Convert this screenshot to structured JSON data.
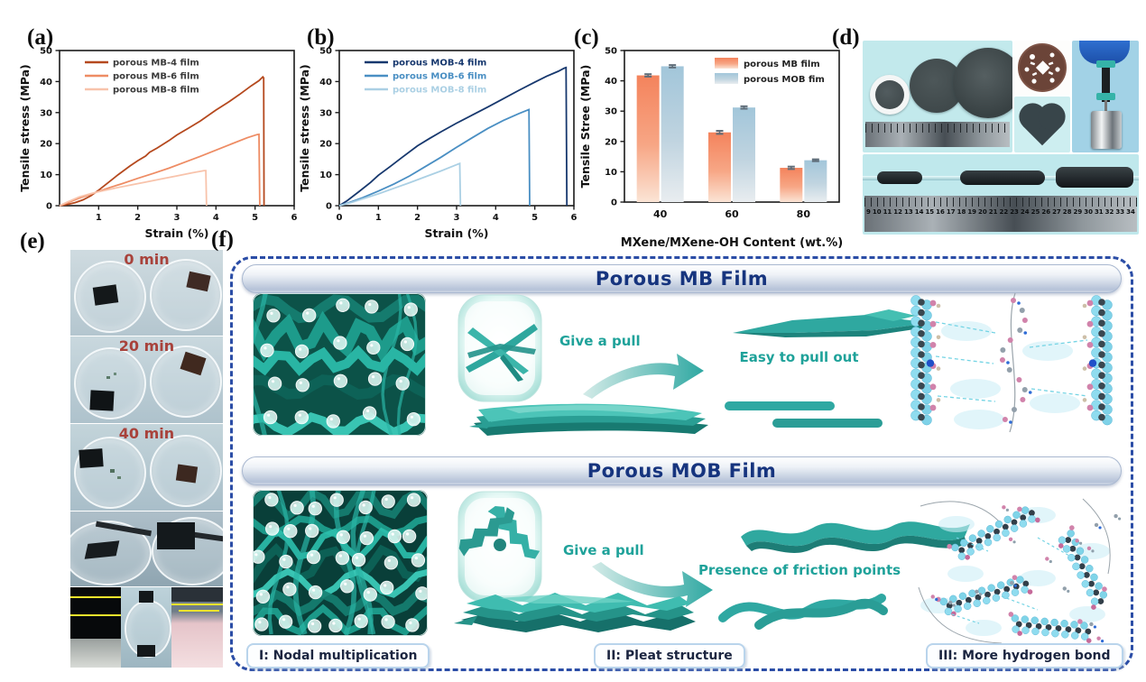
{
  "labels": {
    "a": "(a)",
    "b": "(b)",
    "c": "(c)",
    "d": "(d)",
    "e": "(e)",
    "f": "(f)"
  },
  "chart_data": [
    {
      "type": "line",
      "title": "",
      "xlabel": "Strain (%)",
      "ylabel": "Tensile stress (MPa)",
      "xlim": [
        0,
        6
      ],
      "ylim": [
        0,
        50
      ],
      "xticks": [
        1,
        2,
        3,
        4,
        5,
        6
      ],
      "yticks": [
        0,
        10,
        20,
        30,
        40,
        50
      ],
      "legend_position": "top-left",
      "legend_text_colored": false,
      "grid": false,
      "series": [
        {
          "name": "porous MB-4 film",
          "color": "#b5491e",
          "points": [
            [
              0,
              0
            ],
            [
              0.2,
              0.4
            ],
            [
              0.4,
              1.0
            ],
            [
              0.6,
              1.9
            ],
            [
              0.8,
              3.2
            ],
            [
              1.0,
              5.0
            ],
            [
              1.2,
              7.0
            ],
            [
              1.5,
              10.0
            ],
            [
              1.8,
              12.8
            ],
            [
              2.0,
              14.5
            ],
            [
              2.2,
              16.0
            ],
            [
              2.3,
              17.2
            ],
            [
              2.5,
              18.6
            ],
            [
              2.8,
              21.0
            ],
            [
              3.0,
              22.8
            ],
            [
              3.3,
              25.0
            ],
            [
              3.6,
              27.3
            ],
            [
              4.0,
              30.8
            ],
            [
              4.3,
              33.2
            ],
            [
              4.6,
              35.8
            ],
            [
              4.9,
              38.6
            ],
            [
              5.1,
              40.3
            ],
            [
              5.2,
              41.5
            ],
            [
              5.22,
              41.2
            ],
            [
              5.23,
              0
            ]
          ]
        },
        {
          "name": "porous MB-6 film",
          "color": "#ee8c64",
          "points": [
            [
              0,
              0
            ],
            [
              0.2,
              0.9
            ],
            [
              0.5,
              2.4
            ],
            [
              0.8,
              3.7
            ],
            [
              1.0,
              4.6
            ],
            [
              1.3,
              5.9
            ],
            [
              1.6,
              7.1
            ],
            [
              2.0,
              8.8
            ],
            [
              2.4,
              10.4
            ],
            [
              2.8,
              12.1
            ],
            [
              3.2,
              14.0
            ],
            [
              3.6,
              15.9
            ],
            [
              4.0,
              17.9
            ],
            [
              4.4,
              19.9
            ],
            [
              4.8,
              21.9
            ],
            [
              5.05,
              22.9
            ],
            [
              5.1,
              23.0
            ],
            [
              5.12,
              0
            ]
          ]
        },
        {
          "name": "porous MB-8 film",
          "color": "#f8c3ab",
          "points": [
            [
              0,
              0
            ],
            [
              0.2,
              1.2
            ],
            [
              0.5,
              2.8
            ],
            [
              0.8,
              3.9
            ],
            [
              1.0,
              4.5
            ],
            [
              1.4,
              5.6
            ],
            [
              1.8,
              6.6
            ],
            [
              2.2,
              7.6
            ],
            [
              2.6,
              8.6
            ],
            [
              3.0,
              9.6
            ],
            [
              3.4,
              10.6
            ],
            [
              3.7,
              11.3
            ],
            [
              3.74,
              11.3
            ],
            [
              3.76,
              0
            ]
          ]
        }
      ]
    },
    {
      "type": "line",
      "title": "",
      "xlabel": "Strain (%)",
      "ylabel": "Tensile stress (MPa)",
      "xlim": [
        0,
        6
      ],
      "ylim": [
        0,
        50
      ],
      "xticks": [
        0,
        1,
        2,
        3,
        4,
        5,
        6
      ],
      "yticks": [
        0,
        10,
        20,
        30,
        40,
        50
      ],
      "legend_position": "top-left",
      "legend_text_colored": true,
      "grid": false,
      "series": [
        {
          "name": "porous MOB-4 film",
          "color": "#17386e",
          "points": [
            [
              0,
              0
            ],
            [
              0.2,
              1.6
            ],
            [
              0.5,
              4.5
            ],
            [
              0.8,
              7.5
            ],
            [
              1.0,
              9.8
            ],
            [
              1.3,
              12.6
            ],
            [
              1.6,
              15.5
            ],
            [
              2.0,
              19.3
            ],
            [
              2.3,
              21.6
            ],
            [
              2.6,
              23.8
            ],
            [
              3.0,
              26.6
            ],
            [
              3.4,
              29.2
            ],
            [
              3.8,
              31.8
            ],
            [
              4.2,
              34.5
            ],
            [
              4.6,
              37.2
            ],
            [
              5.0,
              39.8
            ],
            [
              5.3,
              41.7
            ],
            [
              5.6,
              43.3
            ],
            [
              5.75,
              44.3
            ],
            [
              5.8,
              44.5
            ],
            [
              5.82,
              0
            ]
          ]
        },
        {
          "name": "porous MOB-6  film",
          "color": "#4a8fc3",
          "points": [
            [
              0,
              0
            ],
            [
              0.3,
              1.2
            ],
            [
              0.6,
              2.6
            ],
            [
              1.0,
              4.7
            ],
            [
              1.4,
              7.0
            ],
            [
              1.8,
              9.6
            ],
            [
              2.2,
              12.6
            ],
            [
              2.6,
              15.6
            ],
            [
              3.0,
              18.8
            ],
            [
              3.4,
              21.9
            ],
            [
              3.8,
              24.9
            ],
            [
              4.2,
              27.5
            ],
            [
              4.6,
              29.7
            ],
            [
              4.85,
              31.0
            ],
            [
              4.87,
              0
            ]
          ]
        },
        {
          "name": "porous MOB-8  film",
          "color": "#abd0e4",
          "points": [
            [
              0,
              0
            ],
            [
              0.3,
              1.0
            ],
            [
              0.6,
              2.2
            ],
            [
              1.0,
              3.8
            ],
            [
              1.4,
              5.6
            ],
            [
              1.8,
              7.4
            ],
            [
              2.2,
              9.3
            ],
            [
              2.6,
              11.2
            ],
            [
              3.0,
              13.2
            ],
            [
              3.08,
              13.6
            ],
            [
              3.1,
              0
            ]
          ]
        }
      ]
    },
    {
      "type": "bar",
      "title": "",
      "xlabel": "MXene/MXene-OH Content (wt.%)",
      "ylabel": "Tensile Stree (MPa)",
      "ylim": [
        0,
        50
      ],
      "yticks": [
        0,
        10,
        20,
        30,
        40,
        50
      ],
      "categories": [
        "40",
        "60",
        "80"
      ],
      "legend_position": "top-right",
      "grid": false,
      "series": [
        {
          "name": "porous MB film",
          "values": [
            41.8,
            23.0,
            11.3
          ],
          "errors": [
            0.4,
            0.5,
            0.4
          ],
          "gradient": [
            [
              "0%",
              "#f4835c"
            ],
            [
              "55%",
              "#f7a685"
            ],
            [
              "100%",
              "#fbe4d5"
            ]
          ]
        },
        {
          "name": "porous MOB fim",
          "values": [
            44.8,
            31.2,
            13.8
          ],
          "errors": [
            0.4,
            0.4,
            0.3
          ],
          "gradient": [
            [
              "0%",
              "#a2c6da"
            ],
            [
              "55%",
              "#c0d4e0"
            ],
            [
              "100%",
              "#e9edf0"
            ]
          ]
        }
      ],
      "error_color": "#5f6d79"
    }
  ],
  "panel_d": {
    "ruler_numbers": [
      "9",
      "10",
      "11",
      "12",
      "13",
      "14",
      "15",
      "16",
      "17",
      "18",
      "19",
      "20",
      "21",
      "22",
      "23",
      "24",
      "25",
      "26",
      "27",
      "28",
      "29",
      "30",
      "31",
      "32",
      "33",
      "34"
    ]
  },
  "panel_e": {
    "time_labels": [
      "0 min",
      "20 min",
      "40 min"
    ]
  },
  "panel_f": {
    "sections": [
      {
        "title": "Porous MB Film",
        "action": "Give a pull",
        "result": "Easy to pull out"
      },
      {
        "title": "Porous MOB Film",
        "action": "Give a pull",
        "result": "Presence of friction points"
      }
    ],
    "footnotes": [
      "I: Nodal multiplication",
      "II: Pleat structure",
      "III: More hydrogen bond"
    ],
    "colors": {
      "teal": "#2fa8a2",
      "dashed_border": "#2b4da6",
      "header_text": "#16347e",
      "time_label": "#a8423b"
    }
  }
}
